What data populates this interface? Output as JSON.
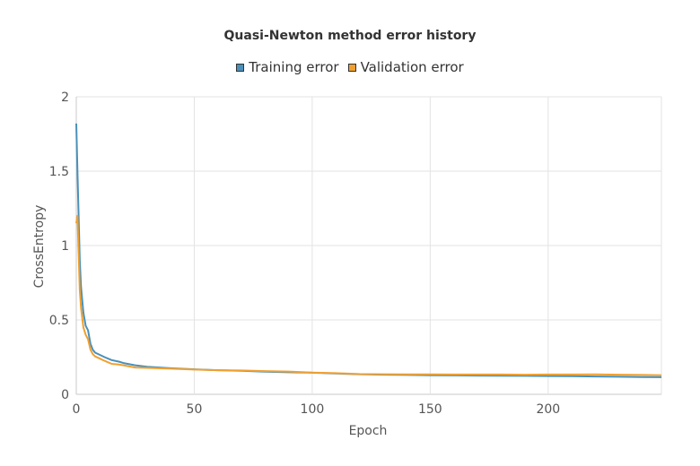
{
  "chart_data": {
    "type": "line",
    "title": "Quasi-Newton method error history",
    "xlabel": "Epoch",
    "ylabel": "CrossEntropy",
    "xlim": [
      0,
      248
    ],
    "ylim": [
      0,
      2
    ],
    "xticks": [
      0,
      50,
      100,
      150,
      200
    ],
    "yticks": [
      0,
      0.5,
      1,
      1.5,
      2
    ],
    "ytick_labels": [
      "0",
      "0.5",
      "1",
      "1.5",
      "2"
    ],
    "grid": true,
    "legend_position": "top-center",
    "series": [
      {
        "name": "Training error",
        "color": "#4a90b8",
        "x": [
          0,
          0.5,
          1,
          1.5,
          2,
          3,
          4,
          5,
          6,
          7,
          8,
          10,
          12,
          15,
          18,
          20,
          25,
          30,
          40,
          50,
          60,
          70,
          80,
          90,
          100,
          110,
          120,
          130,
          140,
          150,
          160,
          170,
          180,
          190,
          200,
          210,
          220,
          230,
          240,
          248
        ],
        "values": [
          1.82,
          1.5,
          1.2,
          0.9,
          0.72,
          0.55,
          0.46,
          0.43,
          0.34,
          0.3,
          0.28,
          0.265,
          0.25,
          0.23,
          0.22,
          0.21,
          0.195,
          0.185,
          0.175,
          0.168,
          0.162,
          0.158,
          0.152,
          0.148,
          0.145,
          0.14,
          0.135,
          0.132,
          0.13,
          0.128,
          0.127,
          0.126,
          0.125,
          0.124,
          0.123,
          0.122,
          0.12,
          0.118,
          0.116,
          0.115
        ]
      },
      {
        "name": "Validation error",
        "color": "#f0a030",
        "x": [
          0,
          0.5,
          1,
          1.5,
          2,
          3,
          4,
          5,
          6,
          7,
          8,
          10,
          12,
          15,
          18,
          20,
          25,
          30,
          40,
          50,
          60,
          70,
          80,
          90,
          100,
          110,
          120,
          130,
          140,
          150,
          160,
          170,
          180,
          190,
          200,
          210,
          220,
          230,
          240,
          248
        ],
        "values": [
          1.15,
          1.2,
          0.95,
          0.7,
          0.58,
          0.45,
          0.4,
          0.37,
          0.3,
          0.27,
          0.255,
          0.24,
          0.225,
          0.205,
          0.2,
          0.195,
          0.18,
          0.178,
          0.172,
          0.166,
          0.162,
          0.16,
          0.156,
          0.153,
          0.146,
          0.142,
          0.136,
          0.135,
          0.134,
          0.134,
          0.133,
          0.133,
          0.133,
          0.132,
          0.133,
          0.133,
          0.134,
          0.132,
          0.13,
          0.128
        ]
      }
    ]
  }
}
